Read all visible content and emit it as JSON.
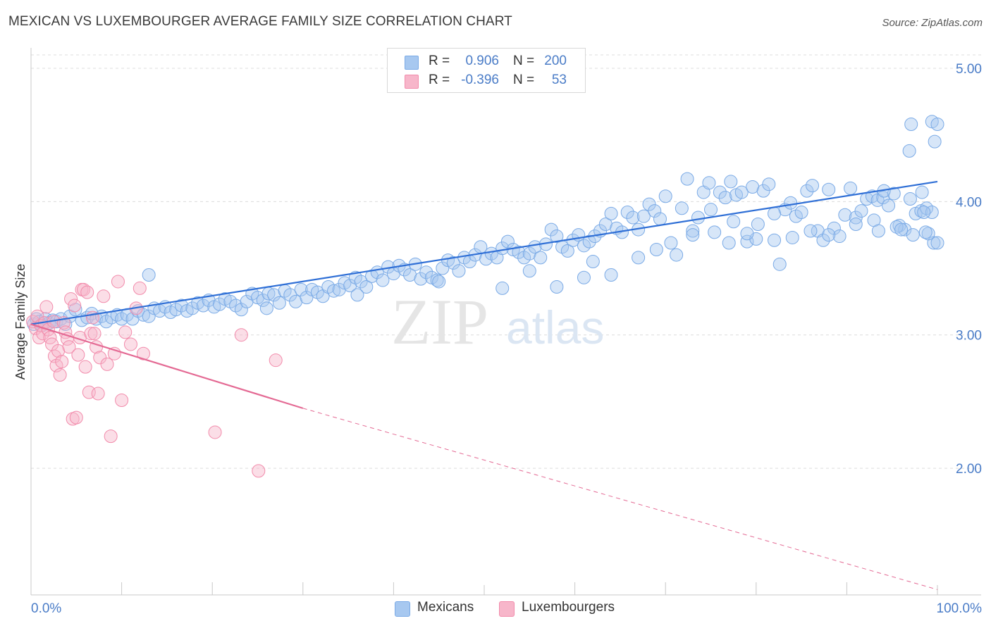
{
  "header": {
    "title": "MEXICAN VS LUXEMBOURGER AVERAGE FAMILY SIZE CORRELATION CHART",
    "source": "Source: ZipAtlas.com"
  },
  "watermark": {
    "zip": "ZIP",
    "atlas": "atlas"
  },
  "legend": {
    "rows": [
      {
        "r_label": "R =",
        "r_value": "0.906",
        "n_label": "N =",
        "n_value": "200",
        "color": "#a7c8f0"
      },
      {
        "r_label": "R =",
        "r_value": "-0.396",
        "n_label": "N =",
        "n_value": "53",
        "color": "#f7b6ca"
      }
    ]
  },
  "bottom_legend": {
    "items": [
      {
        "label": "Mexicans",
        "color": "#a7c8f0"
      },
      {
        "label": "Luxembourgers",
        "color": "#f7b6ca"
      }
    ]
  },
  "chart_data": {
    "type": "scatter",
    "title": "MEXICAN VS LUXEMBOURGER AVERAGE FAMILY SIZE CORRELATION CHART",
    "xlabel": "",
    "ylabel": "Average Family Size",
    "x_tick_labels": [
      "0.0%",
      "100.0%"
    ],
    "y_tick_labels": [
      "2.00",
      "3.00",
      "4.00",
      "5.00"
    ],
    "xlim": [
      0,
      100
    ],
    "ylim": [
      1.05,
      5.1
    ],
    "grid": true,
    "legend_position": "top-center",
    "series": [
      {
        "name": "Mexicans",
        "color": "#7aaae6",
        "trend": {
          "x0": 0,
          "y0": 3.08,
          "x1": 100,
          "y1": 4.15,
          "style": "solid"
        },
        "points": [
          [
            0.3,
            3.08
          ],
          [
            0.6,
            3.12
          ],
          [
            0.9,
            3.1
          ],
          [
            1.2,
            3.07
          ],
          [
            1.6,
            3.12
          ],
          [
            2.0,
            3.09
          ],
          [
            2.4,
            3.11
          ],
          [
            2.8,
            3.1
          ],
          [
            3.3,
            3.12
          ],
          [
            3.8,
            3.08
          ],
          [
            4.3,
            3.14
          ],
          [
            4.9,
            3.19
          ],
          [
            5.6,
            3.11
          ],
          [
            6.2,
            3.13
          ],
          [
            6.7,
            3.16
          ],
          [
            7.2,
            3.12
          ],
          [
            7.8,
            3.14
          ],
          [
            8.3,
            3.1
          ],
          [
            8.9,
            3.13
          ],
          [
            9.5,
            3.15
          ],
          [
            10.0,
            3.12
          ],
          [
            10.6,
            3.15
          ],
          [
            11.2,
            3.12
          ],
          [
            11.8,
            3.18
          ],
          [
            12.4,
            3.15
          ],
          [
            13.0,
            3.14
          ],
          [
            13.6,
            3.2
          ],
          [
            14.2,
            3.18
          ],
          [
            14.8,
            3.21
          ],
          [
            15.4,
            3.17
          ],
          [
            16.0,
            3.19
          ],
          [
            16.6,
            3.22
          ],
          [
            17.2,
            3.18
          ],
          [
            17.8,
            3.2
          ],
          [
            18.4,
            3.24
          ],
          [
            19.0,
            3.22
          ],
          [
            19.6,
            3.26
          ],
          [
            20.2,
            3.21
          ],
          [
            20.8,
            3.23
          ],
          [
            21.4,
            3.27
          ],
          [
            22.0,
            3.25
          ],
          [
            22.6,
            3.22
          ],
          [
            23.2,
            3.19
          ],
          [
            23.8,
            3.25
          ],
          [
            24.4,
            3.31
          ],
          [
            25.0,
            3.28
          ],
          [
            25.6,
            3.26
          ],
          [
            26.2,
            3.31
          ],
          [
            26.8,
            3.3
          ],
          [
            27.4,
            3.24
          ],
          [
            28.0,
            3.33
          ],
          [
            28.6,
            3.3
          ],
          [
            29.2,
            3.25
          ],
          [
            29.8,
            3.34
          ],
          [
            30.4,
            3.28
          ],
          [
            31.0,
            3.34
          ],
          [
            31.6,
            3.32
          ],
          [
            32.2,
            3.29
          ],
          [
            32.8,
            3.36
          ],
          [
            33.4,
            3.33
          ],
          [
            34.0,
            3.34
          ],
          [
            34.6,
            3.39
          ],
          [
            35.2,
            3.37
          ],
          [
            35.8,
            3.43
          ],
          [
            36.4,
            3.4
          ],
          [
            37.0,
            3.36
          ],
          [
            37.6,
            3.44
          ],
          [
            38.2,
            3.47
          ],
          [
            38.8,
            3.41
          ],
          [
            39.4,
            3.51
          ],
          [
            40.0,
            3.46
          ],
          [
            40.6,
            3.52
          ],
          [
            41.2,
            3.49
          ],
          [
            41.8,
            3.45
          ],
          [
            42.4,
            3.53
          ],
          [
            43.0,
            3.42
          ],
          [
            43.6,
            3.47
          ],
          [
            44.2,
            3.43
          ],
          [
            44.8,
            3.41
          ],
          [
            45.4,
            3.5
          ],
          [
            46.0,
            3.56
          ],
          [
            46.6,
            3.54
          ],
          [
            47.2,
            3.48
          ],
          [
            47.8,
            3.58
          ],
          [
            48.4,
            3.55
          ],
          [
            49.0,
            3.6
          ],
          [
            49.6,
            3.66
          ],
          [
            50.2,
            3.57
          ],
          [
            50.8,
            3.61
          ],
          [
            51.4,
            3.58
          ],
          [
            52.0,
            3.65
          ],
          [
            52.6,
            3.7
          ],
          [
            53.2,
            3.64
          ],
          [
            53.8,
            3.62
          ],
          [
            54.4,
            3.58
          ],
          [
            55.0,
            3.61
          ],
          [
            55.6,
            3.66
          ],
          [
            56.2,
            3.58
          ],
          [
            56.8,
            3.68
          ],
          [
            57.4,
            3.79
          ],
          [
            58.0,
            3.74
          ],
          [
            58.6,
            3.66
          ],
          [
            59.2,
            3.63
          ],
          [
            59.8,
            3.71
          ],
          [
            60.4,
            3.75
          ],
          [
            61.0,
            3.67
          ],
          [
            61.6,
            3.7
          ],
          [
            62.2,
            3.74
          ],
          [
            62.8,
            3.78
          ],
          [
            63.4,
            3.83
          ],
          [
            64.0,
            3.91
          ],
          [
            64.6,
            3.8
          ],
          [
            65.2,
            3.77
          ],
          [
            65.8,
            3.92
          ],
          [
            66.4,
            3.88
          ],
          [
            67.0,
            3.79
          ],
          [
            67.6,
            3.89
          ],
          [
            68.2,
            3.98
          ],
          [
            68.8,
            3.93
          ],
          [
            69.4,
            3.87
          ],
          [
            70.0,
            4.04
          ],
          [
            70.6,
            3.69
          ],
          [
            71.2,
            3.6
          ],
          [
            71.8,
            3.95
          ],
          [
            72.4,
            4.17
          ],
          [
            73.0,
            3.78
          ],
          [
            73.6,
            3.88
          ],
          [
            74.2,
            4.07
          ],
          [
            74.8,
            4.14
          ],
          [
            75.4,
            3.77
          ],
          [
            76.0,
            4.07
          ],
          [
            76.6,
            4.03
          ],
          [
            77.2,
            4.15
          ],
          [
            77.8,
            4.05
          ],
          [
            78.4,
            4.07
          ],
          [
            79.0,
            3.7
          ],
          [
            79.6,
            4.11
          ],
          [
            80.2,
            3.83
          ],
          [
            80.8,
            4.08
          ],
          [
            81.4,
            4.13
          ],
          [
            82.0,
            3.71
          ],
          [
            82.6,
            3.53
          ],
          [
            83.2,
            3.94
          ],
          [
            83.8,
            3.99
          ],
          [
            84.4,
            3.89
          ],
          [
            85.0,
            3.92
          ],
          [
            85.6,
            4.08
          ],
          [
            86.2,
            4.12
          ],
          [
            86.8,
            3.78
          ],
          [
            87.4,
            3.71
          ],
          [
            88.0,
            4.09
          ],
          [
            88.6,
            3.8
          ],
          [
            89.2,
            3.74
          ],
          [
            89.8,
            3.9
          ],
          [
            90.4,
            4.1
          ],
          [
            91.0,
            3.88
          ],
          [
            91.6,
            3.93
          ],
          [
            92.2,
            4.02
          ],
          [
            92.8,
            4.04
          ],
          [
            93.4,
            4.01
          ],
          [
            94.0,
            4.03
          ],
          [
            94.6,
            3.97
          ],
          [
            95.2,
            4.06
          ],
          [
            95.8,
            3.82
          ],
          [
            96.4,
            3.79
          ],
          [
            97.0,
            4.02
          ],
          [
            97.6,
            3.91
          ],
          [
            98.2,
            3.93
          ],
          [
            98.8,
            3.95
          ],
          [
            99.4,
            3.92
          ],
          [
            13.0,
            3.45
          ],
          [
            26.0,
            3.2
          ],
          [
            36.0,
            3.3
          ],
          [
            45.0,
            3.4
          ],
          [
            52.0,
            3.35
          ],
          [
            55.0,
            3.48
          ],
          [
            58.0,
            3.36
          ],
          [
            61.0,
            3.43
          ],
          [
            62.0,
            3.55
          ],
          [
            64.0,
            3.45
          ],
          [
            67.0,
            3.58
          ],
          [
            69.0,
            3.64
          ],
          [
            73.0,
            3.75
          ],
          [
            75.0,
            3.94
          ],
          [
            77.0,
            3.69
          ],
          [
            80.0,
            3.72
          ],
          [
            84.0,
            3.73
          ],
          [
            86.0,
            3.78
          ],
          [
            91.0,
            3.83
          ],
          [
            93.0,
            3.86
          ],
          [
            95.5,
            3.81
          ],
          [
            97.3,
            3.75
          ],
          [
            98.5,
            3.92
          ],
          [
            96.9,
            4.38
          ],
          [
            99.4,
            4.6
          ],
          [
            97.1,
            4.58
          ],
          [
            99.7,
            4.45
          ],
          [
            100.0,
            4.58
          ],
          [
            98.3,
            4.07
          ],
          [
            99.6,
            3.69
          ],
          [
            99.0,
            3.76
          ],
          [
            98.7,
            3.77
          ],
          [
            100.0,
            3.69
          ],
          [
            93.5,
            3.78
          ],
          [
            94.1,
            4.08
          ],
          [
            96.0,
            3.79
          ],
          [
            88.0,
            3.75
          ],
          [
            82.0,
            3.91
          ],
          [
            79.0,
            3.76
          ],
          [
            77.5,
            3.85
          ]
        ]
      },
      {
        "name": "Luxembourgers",
        "color": "#f28bab",
        "trend": {
          "x0": 0,
          "y0": 3.08,
          "x1": 30,
          "y1": 2.45,
          "style": "solid",
          "ext_x1": 100,
          "ext_y1": 1.09,
          "ext_style": "dashed"
        },
        "points": [
          [
            0.2,
            3.1
          ],
          [
            0.5,
            3.05
          ],
          [
            0.7,
            3.14
          ],
          [
            0.9,
            2.98
          ],
          [
            1.1,
            3.07
          ],
          [
            1.3,
            3.01
          ],
          [
            1.5,
            3.09
          ],
          [
            1.7,
            3.21
          ],
          [
            1.9,
            3.04
          ],
          [
            2.1,
            2.98
          ],
          [
            2.3,
            2.93
          ],
          [
            2.5,
            3.1
          ],
          [
            2.6,
            2.84
          ],
          [
            2.8,
            2.77
          ],
          [
            3.0,
            2.88
          ],
          [
            3.2,
            2.7
          ],
          [
            3.4,
            2.8
          ],
          [
            3.6,
            3.09
          ],
          [
            3.8,
            3.02
          ],
          [
            4.0,
            2.97
          ],
          [
            4.2,
            2.91
          ],
          [
            4.4,
            3.27
          ],
          [
            4.6,
            2.37
          ],
          [
            4.8,
            3.22
          ],
          [
            5.0,
            2.38
          ],
          [
            5.2,
            2.85
          ],
          [
            5.4,
            2.98
          ],
          [
            5.6,
            3.34
          ],
          [
            5.8,
            3.34
          ],
          [
            6.0,
            2.76
          ],
          [
            6.2,
            3.32
          ],
          [
            6.4,
            2.57
          ],
          [
            6.6,
            3.01
          ],
          [
            6.8,
            3.13
          ],
          [
            7.0,
            3.01
          ],
          [
            7.2,
            2.91
          ],
          [
            7.4,
            2.56
          ],
          [
            7.6,
            2.83
          ],
          [
            8.0,
            3.29
          ],
          [
            8.4,
            2.78
          ],
          [
            8.8,
            2.24
          ],
          [
            9.2,
            2.86
          ],
          [
            9.6,
            3.4
          ],
          [
            10.0,
            2.51
          ],
          [
            10.4,
            3.02
          ],
          [
            11.0,
            2.93
          ],
          [
            11.6,
            3.2
          ],
          [
            12.0,
            3.35
          ],
          [
            12.4,
            2.86
          ],
          [
            20.3,
            2.27
          ],
          [
            23.2,
            3.0
          ],
          [
            25.1,
            1.98
          ],
          [
            27.0,
            2.81
          ]
        ]
      }
    ]
  }
}
